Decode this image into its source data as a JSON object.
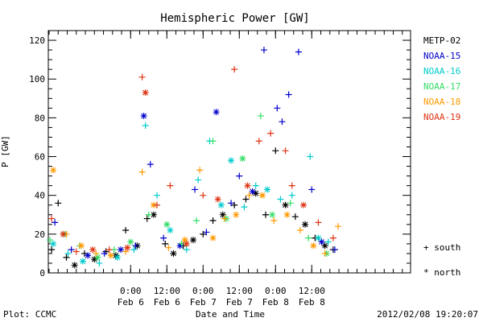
{
  "chart_data": {
    "type": "scatter",
    "title": "Hemispheric Power [GW]",
    "ylabel": "P [GW]",
    "xlabel": "Date and Time",
    "ylim": [
      0,
      125
    ],
    "yticks": [
      0,
      20,
      40,
      60,
      80,
      100,
      120
    ],
    "xlim_hours": [
      -5,
      17
    ],
    "xticks": [
      {
        "hour": 0,
        "time": "0:00",
        "date": "Feb 6"
      },
      {
        "hour": 2.2,
        "time": "12:00",
        "date": "Feb 6"
      },
      {
        "hour": 4.4,
        "time": "0:00",
        "date": "Feb 7"
      },
      {
        "hour": 6.6,
        "time": "12:00",
        "date": "Feb 7"
      },
      {
        "hour": 8.8,
        "time": "0:00",
        "date": "Feb 8"
      },
      {
        "hour": 11.0,
        "time": "12:00",
        "date": "Feb 8"
      }
    ],
    "legend_position": "right",
    "markers": {
      "plus": "south",
      "asterisk": "north"
    },
    "series": [
      {
        "name": "METP-02",
        "color": "#000000",
        "points": [
          [
            -4.8,
            12,
            "plus"
          ],
          [
            -4.4,
            36,
            "plus"
          ],
          [
            -3.9,
            8,
            "plus"
          ],
          [
            -3.4,
            4,
            "asterisk"
          ],
          [
            -2.8,
            10,
            "plus"
          ],
          [
            -2.2,
            7,
            "asterisk"
          ],
          [
            -1.5,
            11,
            "plus"
          ],
          [
            -0.9,
            9,
            "asterisk"
          ],
          [
            -0.3,
            22,
            "plus"
          ],
          [
            0.4,
            14,
            "asterisk"
          ],
          [
            1.0,
            28,
            "plus"
          ],
          [
            1.4,
            30,
            "asterisk"
          ],
          [
            2.1,
            15,
            "plus"
          ],
          [
            2.6,
            10,
            "asterisk"
          ],
          [
            3.2,
            14,
            "plus"
          ],
          [
            3.8,
            17,
            "asterisk"
          ],
          [
            4.4,
            20,
            "plus"
          ],
          [
            5.0,
            27,
            "plus"
          ],
          [
            5.6,
            30,
            "asterisk"
          ],
          [
            6.3,
            35,
            "plus"
          ],
          [
            7.0,
            38,
            "plus"
          ],
          [
            7.6,
            41,
            "asterisk"
          ],
          [
            8.2,
            30,
            "plus"
          ],
          [
            8.8,
            63,
            "plus"
          ],
          [
            9.4,
            35,
            "asterisk"
          ],
          [
            10.0,
            29,
            "plus"
          ],
          [
            10.6,
            25,
            "asterisk"
          ],
          [
            11.2,
            18,
            "plus"
          ],
          [
            11.8,
            14,
            "asterisk"
          ],
          [
            12.3,
            12,
            "plus"
          ]
        ]
      },
      {
        "name": "NOAA-15",
        "color": "#0000cc",
        "points": [
          [
            -4.6,
            26,
            "plus"
          ],
          [
            -3.6,
            12,
            "plus"
          ],
          [
            -2.6,
            9,
            "asterisk"
          ],
          [
            -1.6,
            10,
            "plus"
          ],
          [
            -0.6,
            12,
            "asterisk"
          ],
          [
            0.3,
            14,
            "plus"
          ],
          [
            0.8,
            81,
            "asterisk"
          ],
          [
            1.2,
            56,
            "plus"
          ],
          [
            2.0,
            18,
            "plus"
          ],
          [
            3.0,
            14,
            "asterisk"
          ],
          [
            3.9,
            43,
            "plus"
          ],
          [
            4.6,
            21,
            "plus"
          ],
          [
            5.2,
            83,
            "asterisk"
          ],
          [
            6.1,
            36,
            "plus"
          ],
          [
            6.6,
            50,
            "plus"
          ],
          [
            7.4,
            42,
            "asterisk"
          ],
          [
            8.1,
            115,
            "plus"
          ],
          [
            8.9,
            85,
            "plus"
          ],
          [
            9.2,
            78,
            "plus"
          ],
          [
            9.6,
            92,
            "plus"
          ],
          [
            10.2,
            114,
            "plus"
          ],
          [
            11.0,
            43,
            "plus"
          ],
          [
            11.6,
            16,
            "asterisk"
          ],
          [
            12.4,
            12,
            "plus"
          ]
        ]
      },
      {
        "name": "NOAA-16",
        "color": "#00cccc",
        "points": [
          [
            -4.7,
            15,
            "asterisk"
          ],
          [
            -3.8,
            10,
            "plus"
          ],
          [
            -2.9,
            6,
            "asterisk"
          ],
          [
            -1.9,
            5,
            "plus"
          ],
          [
            -0.8,
            8,
            "asterisk"
          ],
          [
            0.2,
            12,
            "plus"
          ],
          [
            0.9,
            76,
            "plus"
          ],
          [
            1.6,
            40,
            "plus"
          ],
          [
            2.4,
            22,
            "asterisk"
          ],
          [
            3.4,
            12,
            "plus"
          ],
          [
            4.1,
            48,
            "plus"
          ],
          [
            4.8,
            68,
            "plus"
          ],
          [
            5.5,
            35,
            "asterisk"
          ],
          [
            6.1,
            58,
            "asterisk"
          ],
          [
            6.9,
            34,
            "plus"
          ],
          [
            7.6,
            45,
            "plus"
          ],
          [
            8.3,
            43,
            "asterisk"
          ],
          [
            9.1,
            38,
            "plus"
          ],
          [
            9.8,
            40,
            "plus"
          ],
          [
            10.9,
            60,
            "plus"
          ],
          [
            11.4,
            18,
            "asterisk"
          ],
          [
            12.0,
            16,
            "plus"
          ]
        ]
      },
      {
        "name": "NOAA-17",
        "color": "#33dd66",
        "points": [
          [
            -4.9,
            17,
            "plus"
          ],
          [
            -4.0,
            20,
            "asterisk"
          ],
          [
            -3.1,
            14,
            "plus"
          ],
          [
            -2.0,
            8,
            "asterisk"
          ],
          [
            -1.0,
            12,
            "plus"
          ],
          [
            0.0,
            16,
            "asterisk"
          ],
          [
            1.1,
            30,
            "plus"
          ],
          [
            2.2,
            25,
            "asterisk"
          ],
          [
            3.1,
            15,
            "plus"
          ],
          [
            4.0,
            27,
            "plus"
          ],
          [
            5.0,
            68,
            "plus"
          ],
          [
            5.8,
            28,
            "asterisk"
          ],
          [
            6.8,
            59,
            "asterisk"
          ],
          [
            7.9,
            81,
            "plus"
          ],
          [
            8.6,
            30,
            "asterisk"
          ],
          [
            9.7,
            36,
            "plus"
          ],
          [
            10.8,
            18,
            "plus"
          ],
          [
            11.9,
            10,
            "asterisk"
          ]
        ]
      },
      {
        "name": "NOAA-18",
        "color": "#ff9900",
        "points": [
          [
            -4.7,
            53,
            "asterisk"
          ],
          [
            -3.9,
            20,
            "plus"
          ],
          [
            -3.0,
            14,
            "asterisk"
          ],
          [
            -2.1,
            10,
            "plus"
          ],
          [
            -1.2,
            9,
            "asterisk"
          ],
          [
            -0.3,
            11,
            "plus"
          ],
          [
            0.7,
            52,
            "plus"
          ],
          [
            1.4,
            35,
            "asterisk"
          ],
          [
            2.3,
            13,
            "plus"
          ],
          [
            3.3,
            17,
            "asterisk"
          ],
          [
            4.2,
            53,
            "plus"
          ],
          [
            5.0,
            18,
            "asterisk"
          ],
          [
            5.7,
            28,
            "plus"
          ],
          [
            6.4,
            30,
            "asterisk"
          ],
          [
            7.2,
            40,
            "plus"
          ],
          [
            8.0,
            40,
            "asterisk"
          ],
          [
            8.7,
            27,
            "plus"
          ],
          [
            9.5,
            30,
            "asterisk"
          ],
          [
            10.3,
            22,
            "plus"
          ],
          [
            11.1,
            14,
            "asterisk"
          ],
          [
            11.8,
            10,
            "plus"
          ],
          [
            12.6,
            24,
            "plus"
          ]
        ]
      },
      {
        "name": "NOAA-19",
        "color": "#dd3311",
        "points": [
          [
            -4.8,
            28,
            "plus"
          ],
          [
            -4.1,
            20,
            "asterisk"
          ],
          [
            -3.3,
            11,
            "plus"
          ],
          [
            -2.3,
            12,
            "asterisk"
          ],
          [
            -1.3,
            12,
            "plus"
          ],
          [
            -0.2,
            13,
            "asterisk"
          ],
          [
            0.7,
            101,
            "plus"
          ],
          [
            0.9,
            93,
            "asterisk"
          ],
          [
            1.6,
            35,
            "plus"
          ],
          [
            2.4,
            45,
            "plus"
          ],
          [
            3.4,
            15,
            "asterisk"
          ],
          [
            4.4,
            40,
            "plus"
          ],
          [
            5.3,
            38,
            "asterisk"
          ],
          [
            6.3,
            105,
            "plus"
          ],
          [
            7.1,
            45,
            "asterisk"
          ],
          [
            7.8,
            68,
            "plus"
          ],
          [
            8.5,
            72,
            "plus"
          ],
          [
            9.4,
            63,
            "plus"
          ],
          [
            9.8,
            45,
            "plus"
          ],
          [
            10.5,
            35,
            "asterisk"
          ],
          [
            11.4,
            26,
            "plus"
          ],
          [
            12.3,
            18,
            "plus"
          ]
        ]
      }
    ]
  },
  "legend": {
    "series_labels": [
      "METP-02",
      "NOAA-15",
      "NOAA-16",
      "NOAA-17",
      "NOAA-18",
      "NOAA-19"
    ],
    "south_label": "south",
    "north_label": "north",
    "plus_symbol": "+",
    "asterisk_symbol": "*"
  },
  "footer": {
    "plot_label": "Plot: CCMC",
    "xlabel": "Date and Time",
    "timestamp": "2012/02/08 19:20:07"
  }
}
